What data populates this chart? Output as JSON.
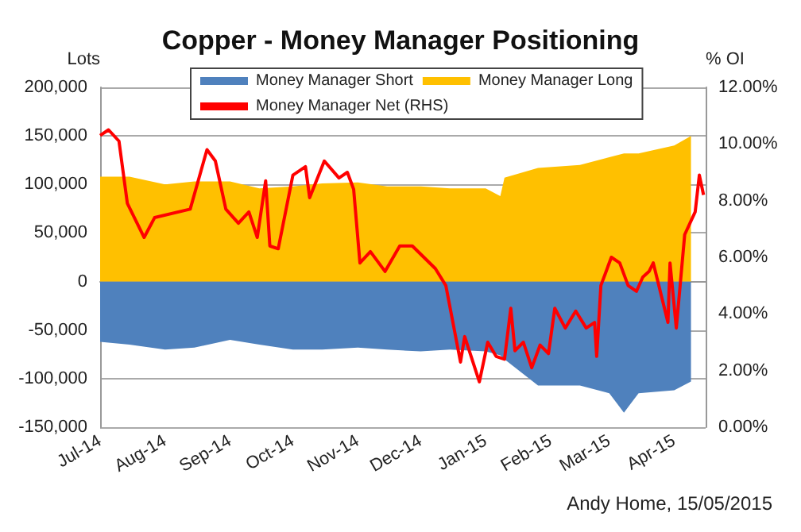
{
  "chart_data": {
    "type": "area",
    "title": "Copper - Money Manager Positioning",
    "ylabel": "Lots",
    "y2label": "% OI",
    "annotations": [
      "Andy Home, 15/05/2015"
    ],
    "x": [
      "2014-07-01",
      "2014-07-15",
      "2014-08-01",
      "2014-08-15",
      "2014-09-01",
      "2014-09-15",
      "2014-10-01",
      "2014-10-15",
      "2014-11-01",
      "2014-11-15",
      "2014-12-01",
      "2014-12-15",
      "2015-01-01",
      "2015-01-08",
      "2015-01-10",
      "2015-01-26",
      "2015-02-15",
      "2015-03-01",
      "2015-03-08",
      "2015-03-15",
      "2015-04-01",
      "2015-04-09"
    ],
    "series": [
      {
        "name": "Money Manager Short",
        "color": "#4f81bd",
        "values": [
          -62000,
          -65000,
          -70000,
          -68000,
          -60000,
          -65000,
          -70000,
          -70000,
          -68000,
          -70000,
          -72000,
          -70000,
          -72000,
          -76000,
          -80000,
          -107000,
          -107000,
          -115000,
          -135000,
          -115000,
          -112000,
          -103000
        ]
      },
      {
        "name": "Money Manager Long",
        "color": "#ffc000",
        "values": [
          108000,
          108000,
          100000,
          103000,
          103000,
          96000,
          98000,
          101000,
          102000,
          98000,
          98000,
          96000,
          96000,
          88000,
          107000,
          117000,
          120000,
          128000,
          132000,
          132000,
          140000,
          150000
        ]
      },
      {
        "name": "Money Manager Net (RHS)",
        "type": "line",
        "axis": "y2",
        "color": "#ff0000",
        "x": [
          "2014-07-01",
          "2014-07-05",
          "2014-07-10",
          "2014-07-14",
          "2014-07-22",
          "2014-07-27",
          "2014-08-13",
          "2014-08-21",
          "2014-08-25",
          "2014-08-30",
          "2014-09-05",
          "2014-09-10",
          "2014-09-14",
          "2014-09-18",
          "2014-09-20",
          "2014-09-24",
          "2014-10-01",
          "2014-10-07",
          "2014-10-09",
          "2014-10-16",
          "2014-10-23",
          "2014-10-27",
          "2014-10-30",
          "2014-11-02",
          "2014-11-07",
          "2014-11-14",
          "2014-11-21",
          "2014-11-27",
          "2014-12-08",
          "2014-12-13",
          "2014-12-20",
          "2014-12-22",
          "2014-12-29",
          "2015-01-02",
          "2015-01-06",
          "2015-01-10",
          "2015-01-13",
          "2015-01-15",
          "2015-01-19",
          "2015-01-23",
          "2015-01-27",
          "2015-01-31",
          "2015-02-03",
          "2015-02-08",
          "2015-02-13",
          "2015-02-18",
          "2015-02-22",
          "2015-02-23",
          "2015-02-25",
          "2015-03-02",
          "2015-03-06",
          "2015-03-10",
          "2015-03-14",
          "2015-03-17",
          "2015-03-20",
          "2015-03-22",
          "2015-03-24",
          "2015-03-29",
          "2015-03-30",
          "2015-04-02",
          "2015-04-06",
          "2015-04-11",
          "2015-04-13",
          "2015-04-15"
        ],
        "values": [
          10.3,
          10.5,
          10.1,
          7.9,
          6.7,
          7.4,
          7.7,
          9.8,
          9.4,
          7.7,
          7.2,
          7.6,
          6.7,
          8.7,
          6.4,
          6.3,
          8.9,
          9.2,
          8.1,
          9.4,
          8.8,
          9.0,
          8.4,
          5.8,
          6.2,
          5.5,
          6.4,
          6.4,
          5.6,
          5.0,
          2.3,
          3.2,
          1.6,
          3.0,
          2.5,
          2.4,
          4.2,
          2.7,
          3.0,
          2.1,
          2.9,
          2.6,
          4.2,
          3.5,
          4.1,
          3.5,
          3.7,
          2.5,
          5.0,
          6.0,
          5.8,
          5.0,
          4.8,
          5.3,
          5.5,
          5.8,
          5.2,
          3.7,
          5.8,
          3.5,
          6.8,
          7.6,
          8.9,
          8.2
        ]
      }
    ],
    "xlim": [
      "2014-07-01",
      "2015-04-16"
    ],
    "xticks": [
      {
        "value": "2014-07-01",
        "label": "Jul-14"
      },
      {
        "value": "2014-08-01",
        "label": "Aug-14"
      },
      {
        "value": "2014-09-01",
        "label": "Sep-14"
      },
      {
        "value": "2014-10-01",
        "label": "Oct-14"
      },
      {
        "value": "2014-11-01",
        "label": "Nov-14"
      },
      {
        "value": "2014-12-01",
        "label": "Dec-14"
      },
      {
        "value": "2015-01-01",
        "label": "Jan-15"
      },
      {
        "value": "2015-02-01",
        "label": "Feb-15"
      },
      {
        "value": "2015-03-01",
        "label": "Mar-15"
      },
      {
        "value": "2015-04-01",
        "label": "Apr-15"
      }
    ],
    "ylim": [
      -150000,
      200000
    ],
    "yticks": [
      {
        "value": -150000,
        "label": "-150,000"
      },
      {
        "value": -100000,
        "label": "-100,000"
      },
      {
        "value": -50000,
        "label": "-50,000"
      },
      0,
      {
        "value": 50000,
        "label": "50,000"
      },
      {
        "value": 100000,
        "label": "100,000"
      },
      {
        "value": 150000,
        "label": "150,000"
      },
      {
        "value": 200000,
        "label": "200,000"
      }
    ],
    "y2lim": [
      0,
      12
    ],
    "y2ticks": [
      {
        "value": 0,
        "label": "0.00%"
      },
      {
        "value": 2,
        "label": "2.00%"
      },
      {
        "value": 4,
        "label": "4.00%"
      },
      {
        "value": 6,
        "label": "6.00%"
      },
      {
        "value": 8,
        "label": "8.00%"
      },
      {
        "value": 10,
        "label": "10.00%"
      },
      {
        "value": 12,
        "label": "12.00%"
      }
    ],
    "grid": "y",
    "legend": "top",
    "marker": "none",
    "line_style": "solid"
  }
}
